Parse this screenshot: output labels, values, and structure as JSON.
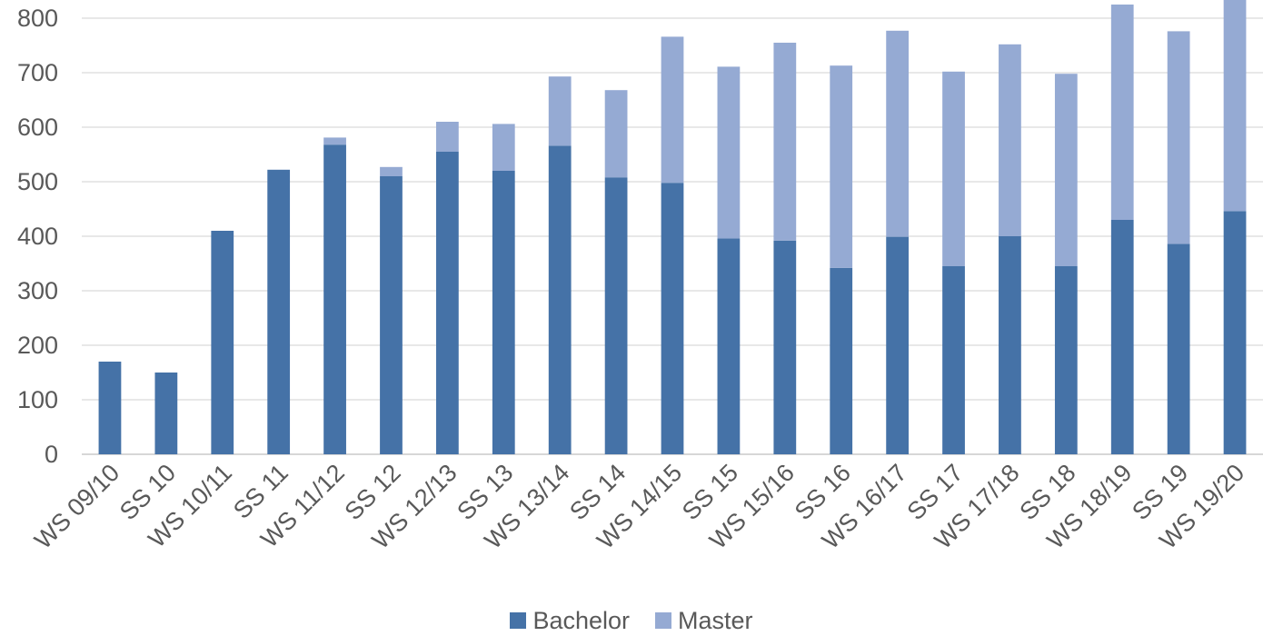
{
  "chart_data": {
    "type": "bar",
    "stacked": true,
    "title": "",
    "xlabel": "",
    "ylabel": "",
    "ylim": [
      0,
      800
    ],
    "yticks": [
      0,
      100,
      200,
      300,
      400,
      500,
      600,
      700,
      800
    ],
    "grid": true,
    "legend_position": "bottom",
    "categories": [
      "WS 09/10",
      "SS 10",
      "WS 10/11",
      "SS 11",
      "WS 11/12",
      "SS 12",
      "WS 12/13",
      "SS 13",
      "WS 13/14",
      "SS 14",
      "WS 14/15",
      "SS 15",
      "WS 15/16",
      "SS 16",
      "WS 16/17",
      "SS 17",
      "WS 17/18",
      "SS 18",
      "WS 18/19",
      "SS 19",
      "WS 19/20"
    ],
    "series": [
      {
        "name": "Bachelor",
        "color": "#4572a7",
        "values": [
          170,
          150,
          410,
          522,
          568,
          510,
          555,
          520,
          566,
          508,
          498,
          396,
          392,
          342,
          399,
          345,
          400,
          345,
          430,
          386,
          446
        ]
      },
      {
        "name": "Master",
        "color": "#95aad3",
        "values": [
          0,
          0,
          0,
          0,
          13,
          17,
          55,
          86,
          127,
          160,
          268,
          315,
          363,
          371,
          378,
          357,
          352,
          353,
          395,
          390,
          400
        ]
      }
    ]
  }
}
